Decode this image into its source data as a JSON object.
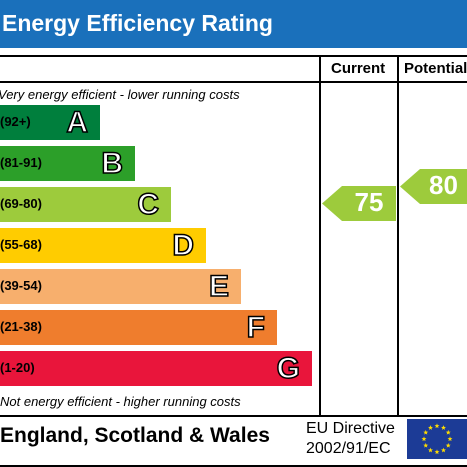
{
  "title": "Energy Efficiency Rating",
  "columns": {
    "current": "Current",
    "potential": "Potential"
  },
  "captions": {
    "top": "Very energy efficient - lower running costs",
    "bottom": "Not energy efficient - higher running costs"
  },
  "chart_data": {
    "type": "bar",
    "title": "Energy Efficiency Rating",
    "bands": [
      {
        "letter": "A",
        "range": "(92+)",
        "color": "#007f3d"
      },
      {
        "letter": "B",
        "range": "(81-91)",
        "color": "#2c9f29"
      },
      {
        "letter": "C",
        "range": "(69-80)",
        "color": "#9dcb3c"
      },
      {
        "letter": "D",
        "range": "(55-68)",
        "color": "#ffcc00"
      },
      {
        "letter": "E",
        "range": "(39-54)",
        "color": "#f7af6d"
      },
      {
        "letter": "F",
        "range": "(21-38)",
        "color": "#ef7d2d"
      },
      {
        "letter": "G",
        "range": "(1-20)",
        "color": "#e9153b"
      }
    ],
    "current": {
      "value": "75",
      "band": "C",
      "color": "#9dcb3c"
    },
    "potential": {
      "value": "80",
      "band": "C",
      "color": "#9dcb3c"
    }
  },
  "footer": {
    "country": "England, Scotland & Wales",
    "directive_line1": "EU Directive",
    "directive_line2": "2002/91/EC"
  },
  "colors": {
    "title_bar": "#1a70bb",
    "flag_blue": "#1c3b96",
    "flag_star": "#ffdd00"
  }
}
